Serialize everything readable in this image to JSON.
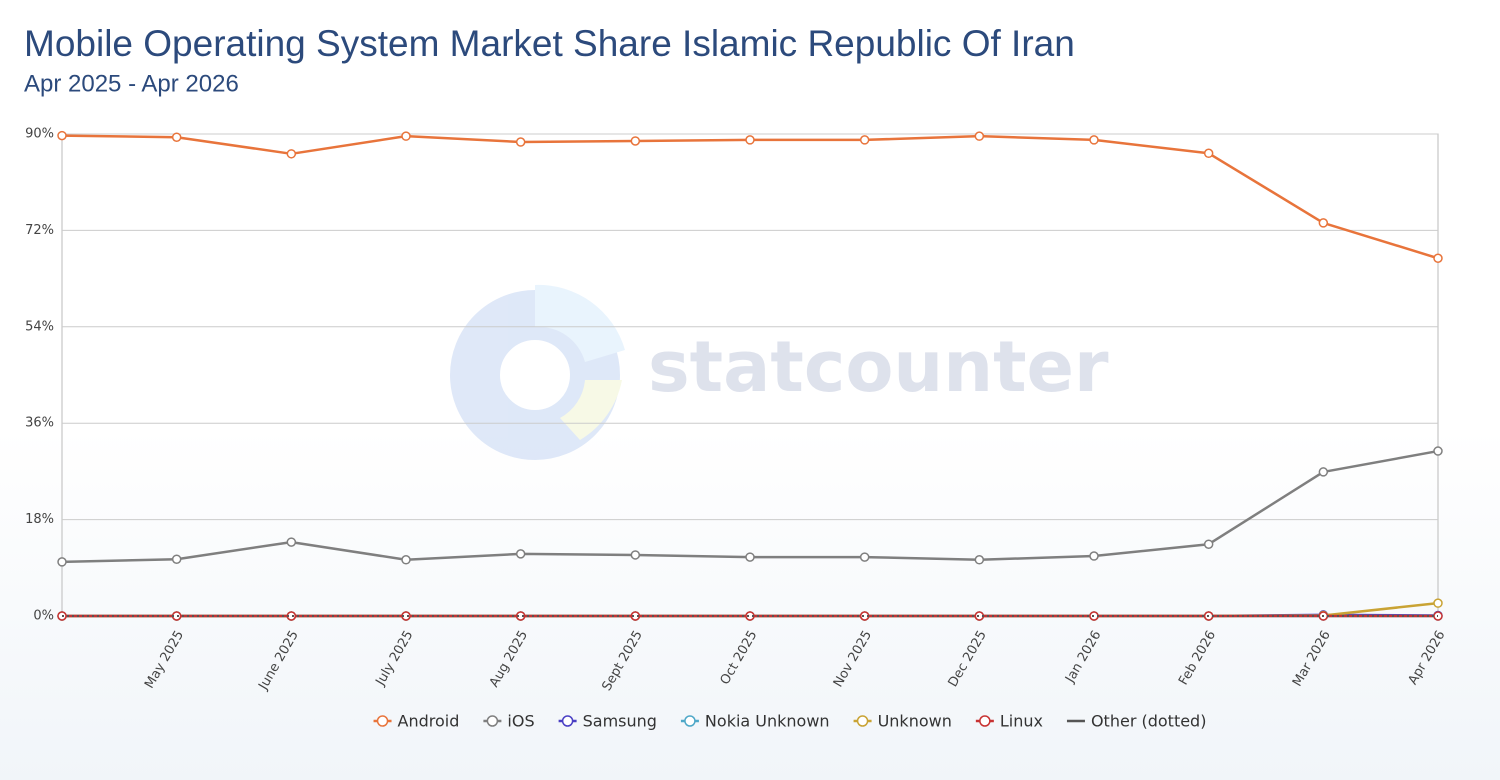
{
  "chart_data": {
    "type": "line",
    "title": "Mobile Operating System Market Share Islamic Republic Of Iran",
    "subtitle": "Apr 2025 - Apr 2026",
    "watermark": "statcounter",
    "categories": [
      null,
      "May 2025",
      "June 2025",
      "July 2025",
      "Aug 2025",
      "Sept 2025",
      "Oct 2025",
      "Nov 2025",
      "Dec 2025",
      "Jan 2026",
      "Feb 2026",
      "Mar 2026",
      "Apr 2026"
    ],
    "ylim": [
      0,
      90
    ],
    "yticks": [
      {
        "value": 0,
        "label": "0%"
      },
      {
        "value": 18,
        "label": "18%"
      },
      {
        "value": 36,
        "label": "36%"
      },
      {
        "value": 54,
        "label": "54%"
      },
      {
        "value": 72,
        "label": "72%"
      },
      {
        "value": 90,
        "label": "90%"
      }
    ],
    "grid": true,
    "legend": "bottom",
    "series": [
      {
        "name": "Android",
        "color": "#e8743b",
        "values": [
          89.7,
          89.4,
          86.3,
          89.6,
          88.5,
          88.7,
          88.9,
          88.9,
          89.6,
          88.9,
          86.4,
          73.4,
          66.8
        ]
      },
      {
        "name": "iOS",
        "color": "#7f7f7f",
        "values": [
          10.1,
          10.6,
          13.8,
          10.5,
          11.6,
          11.4,
          11.0,
          11.0,
          10.5,
          11.2,
          13.4,
          26.9,
          30.8
        ]
      },
      {
        "name": "Samsung",
        "color": "#4a3fc4",
        "values": [
          0,
          0,
          0,
          0,
          0,
          0,
          0,
          0,
          0,
          0,
          0,
          0.2,
          0.1
        ]
      },
      {
        "name": "Nokia Unknown",
        "color": "#4fa8c8",
        "values": [
          0,
          0,
          0,
          0,
          0,
          0,
          0,
          0,
          0,
          0,
          0,
          0,
          0
        ]
      },
      {
        "name": "Unknown",
        "color": "#c9a334",
        "values": [
          0,
          0,
          0,
          0,
          0,
          0,
          0,
          0,
          0,
          0,
          0,
          0.1,
          2.4
        ]
      },
      {
        "name": "Linux",
        "color": "#c83232",
        "values": [
          0,
          0,
          0,
          0,
          0,
          0,
          0,
          0,
          0,
          0,
          0,
          0,
          0
        ]
      },
      {
        "name": "Other (dotted)",
        "color": "#555555",
        "style": "dotted",
        "markers": false,
        "values": [
          0,
          0,
          0,
          0,
          0,
          0,
          0,
          0,
          0,
          0,
          0,
          0,
          0
        ]
      }
    ]
  }
}
